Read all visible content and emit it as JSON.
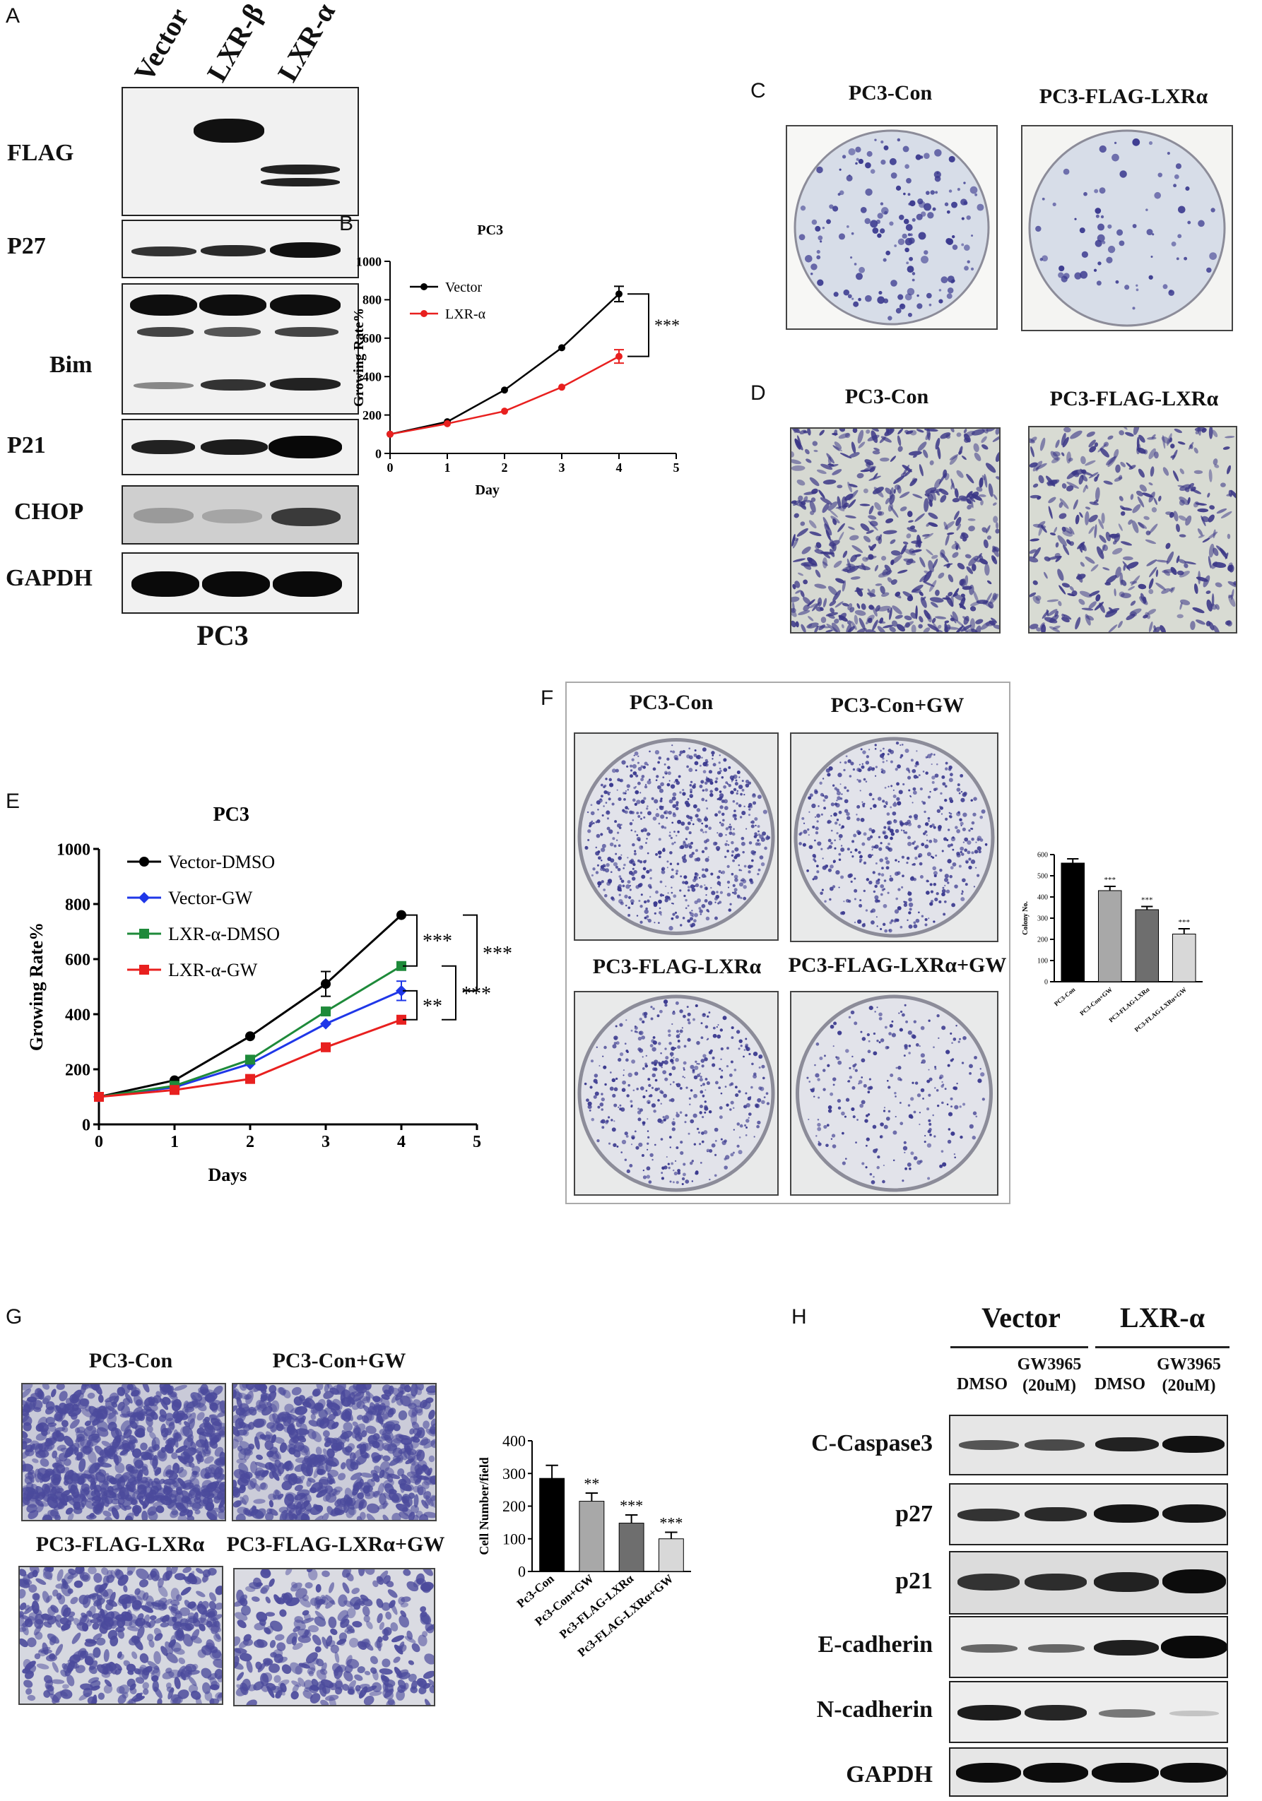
{
  "panels": {
    "A": "A",
    "B": "B",
    "C": "C",
    "D": "D",
    "E": "E",
    "F": "F",
    "G": "G",
    "H": "H"
  },
  "panelA": {
    "lanes": [
      "Vector",
      "LXR-β",
      "LXR-α"
    ],
    "rows": [
      "FLAG",
      "P27",
      "Bim",
      "P21",
      "CHOP",
      "GAPDH"
    ],
    "cell_line": "PC3"
  },
  "panelC": {
    "labels": [
      "PC3-Con",
      "PC3-FLAG-LXRα"
    ]
  },
  "panelD": {
    "labels": [
      "PC3-Con",
      "PC3-FLAG-LXRα"
    ]
  },
  "panelF": {
    "labels": [
      "PC3-Con",
      "PC3-Con+GW",
      "PC3-FLAG-LXRα",
      "PC3-FLAG-LXRα+GW"
    ]
  },
  "panelG": {
    "labels": [
      "PC3-Con",
      "PC3-Con+GW",
      "PC3-FLAG-LXRα",
      "PC3-FLAG-LXRα+GW"
    ]
  },
  "panelH": {
    "groups": [
      "Vector",
      "LXR-α"
    ],
    "lanes": [
      "DMSO",
      "GW3965\n(20uM)",
      "DMSO",
      "GW3965\n(20uM)"
    ],
    "rows": [
      "C-Caspase3",
      "p27",
      "p21",
      "E-cadherin",
      "N-cadherin",
      "GAPDH"
    ]
  },
  "colors": {
    "black": "#000000",
    "red": "#e8201f",
    "blue": "#1f37e8",
    "green": "#1e8a3a",
    "bar1": "#000000",
    "bar2": "#a8a8a8",
    "bar3": "#6e6e6e",
    "bar4": "#d8d8d8",
    "stain": "#3b3a8f"
  },
  "chart_data": [
    {
      "id": "B",
      "type": "line",
      "title": "PC3",
      "xlabel": "Day",
      "ylabel": "Growing Rate%",
      "x": [
        0,
        1,
        2,
        3,
        4
      ],
      "xlim": [
        0,
        5
      ],
      "ylim": [
        0,
        1000
      ],
      "xticks": [
        0,
        1,
        2,
        3,
        4,
        5
      ],
      "yticks": [
        0,
        200,
        400,
        600,
        800,
        1000
      ],
      "series": [
        {
          "name": "Vector",
          "color": "#000000",
          "values": [
            100,
            165,
            330,
            550,
            830
          ],
          "err": [
            0,
            0,
            0,
            0,
            40
          ]
        },
        {
          "name": "LXR-α",
          "color": "#e8201f",
          "values": [
            100,
            155,
            220,
            345,
            505
          ],
          "err": [
            0,
            0,
            0,
            0,
            35
          ]
        }
      ],
      "annotations": [
        "***"
      ],
      "legend": "top-left"
    },
    {
      "id": "E",
      "type": "line",
      "title": "PC3",
      "xlabel": "Days",
      "ylabel": "Growing Rate%",
      "x": [
        0,
        1,
        2,
        3,
        4
      ],
      "xlim": [
        0,
        5
      ],
      "ylim": [
        0,
        1000
      ],
      "xticks": [
        0,
        1,
        2,
        3,
        4,
        5
      ],
      "yticks": [
        0,
        200,
        400,
        600,
        800,
        1000
      ],
      "series": [
        {
          "name": "Vector-DMSO",
          "color": "#000000",
          "marker": "circle",
          "values": [
            100,
            160,
            320,
            510,
            760
          ],
          "err": [
            0,
            0,
            0,
            45,
            0
          ]
        },
        {
          "name": "Vector-GW",
          "color": "#1f37e8",
          "marker": "diamond",
          "values": [
            100,
            135,
            220,
            365,
            485
          ],
          "err": [
            0,
            0,
            0,
            0,
            35
          ]
        },
        {
          "name": "LXR-α-DMSO",
          "color": "#1e8a3a",
          "marker": "square",
          "values": [
            100,
            140,
            235,
            410,
            575
          ],
          "err": [
            0,
            0,
            0,
            0,
            0
          ]
        },
        {
          "name": "LXR-α-GW",
          "color": "#e8201f",
          "marker": "square",
          "values": [
            100,
            125,
            165,
            280,
            380
          ],
          "err": [
            0,
            0,
            0,
            0,
            0
          ]
        }
      ],
      "annotations": [
        "***",
        "***",
        "**",
        "***"
      ],
      "legend": "top-left"
    },
    {
      "id": "F-bar",
      "type": "bar",
      "ylabel": "Colony No.",
      "categories": [
        "PC3-Con",
        "PC3-Con+GW",
        "PC3-FLAG-LXRα",
        "PC3-FLAG-LXRα+GW"
      ],
      "values": [
        560,
        430,
        340,
        225
      ],
      "err": [
        20,
        20,
        15,
        25
      ],
      "ylim": [
        0,
        600
      ],
      "yticks": [
        0,
        100,
        200,
        300,
        400,
        500,
        600
      ],
      "annotations": [
        "",
        "***",
        "***",
        "***"
      ]
    },
    {
      "id": "G-bar",
      "type": "bar",
      "ylabel": "Cell Number/field",
      "categories": [
        "Pc3-Con",
        "Pc3-Con+GW",
        "Pc3-FLAG-LXRα",
        "Pc3-FLAG-LXRα+GW"
      ],
      "values": [
        285,
        215,
        148,
        100
      ],
      "err": [
        40,
        25,
        25,
        20
      ],
      "ylim": [
        0,
        400
      ],
      "yticks": [
        0,
        100,
        200,
        300,
        400
      ],
      "annotations": [
        "",
        "**",
        "***",
        "***"
      ]
    }
  ]
}
